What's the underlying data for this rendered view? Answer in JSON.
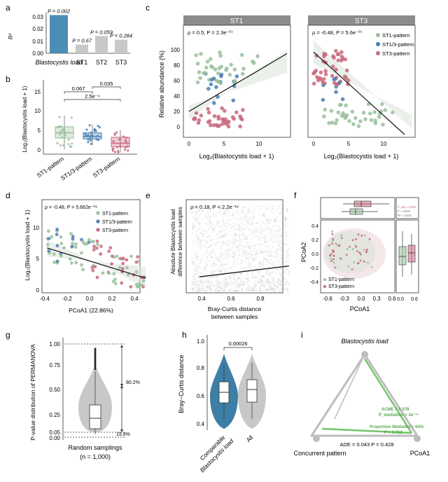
{
  "panels": {
    "a": {
      "label": "a",
      "ylabel": "R²",
      "yticks": [
        "0.00",
        "0.01",
        "0.02",
        "0.03"
      ],
      "chart_data": {
        "type": "bar",
        "categories": [
          "Blastocystis load",
          "ST1",
          "ST2",
          "ST3"
        ],
        "values": [
          0.031,
          0.007,
          0.014,
          0.011
        ],
        "bar_labels": [
          "P = 0.002",
          "P = 0.67",
          "P = 0.059",
          "P = 0.284"
        ],
        "ylim": [
          0,
          0.033
        ]
      }
    },
    "b": {
      "label": "b",
      "ylabel": "Log₂(Blastocystis load + 1)",
      "yticks": [
        "0",
        "5",
        "10",
        "15"
      ],
      "categories": [
        "ST1-pattern",
        "ST1/3-pattern",
        "ST3-pattern"
      ],
      "boxes": [
        {
          "min": 1.2,
          "q1": 4.0,
          "median": 5.3,
          "q3": 6.8,
          "max": 9.6
        },
        {
          "min": 2.3,
          "q1": 3.8,
          "median": 4.4,
          "q3": 5.3,
          "max": 7.4
        },
        {
          "min": 0.4,
          "q1": 1.8,
          "median": 2.7,
          "q3": 4.2,
          "max": 6.0
        }
      ],
      "brackets": [
        "0.067",
        "0.035",
        "2.5e⁻⁴"
      ]
    },
    "c": {
      "label": "c",
      "ylabel": "Relative abundance (%)",
      "xlabel": "Log₂(Blastocystis load + 1)",
      "yticks": [
        "0",
        "20",
        "40",
        "60",
        "80",
        "100"
      ],
      "xticks": [
        "0",
        "5",
        "10"
      ],
      "st1_title": "ST1",
      "st3_title": "ST3",
      "st1_stats": "ρ = 0.5, P = 2.3e⁻⁰⁷",
      "st3_stats": "ρ = -0.48, P = 5.6e⁻⁰⁷",
      "legend": [
        "ST1-pattern",
        "ST1/3-pattern",
        "ST3-pattern"
      ]
    },
    "d": {
      "label": "d",
      "ylabel": "Log₂(Blastocystis load + 1)",
      "xlabel": "PCoA1 (22.86%)",
      "stats": "ρ = -0.48, P = 5.662e⁻⁰⁶",
      "yticks": [
        "0",
        "5",
        "10"
      ],
      "xticks": [
        "-0.4",
        "-0.2",
        "0.0",
        "0.2",
        "0.4"
      ],
      "legend": [
        "ST1-pattern",
        "ST1/3-pattern",
        "ST3-pattern"
      ]
    },
    "e": {
      "label": "e",
      "ylabel_line1": "Absolute Blastocystis load",
      "ylabel_line2": "difference between samples",
      "xlabel_line1": "Bray-Curtis distance",
      "xlabel_line2": "between samples",
      "stats": "ρ = 0.18, P < 2.2e⁻¹⁶",
      "xticks": [
        "0.4",
        "0.6",
        "0.8"
      ]
    },
    "f": {
      "label": "f",
      "ylabel": "PCoA2",
      "xlabel": "PCoA1",
      "xticks": [
        "-0.6",
        "-0.3",
        "0.0",
        "0.3",
        "0.6"
      ],
      "yticks": [
        "-0.4",
        "-0.2",
        "0.0",
        "0.2",
        "0.4"
      ],
      "side_ticks": [
        "0.0",
        "0.6"
      ],
      "inset_stats": [
        "P_adj = 0.005",
        "F = 0.576",
        "R² = 0.010"
      ],
      "legend": [
        "ST1-pattern",
        "ST3-pattern"
      ]
    },
    "g": {
      "label": "g",
      "ylabel": "P-value distribution of PERMANOVA",
      "xlabel_line1": "Random samplings",
      "xlabel_line2": "(n = 1,000)",
      "yticks": [
        "0.00",
        "0.05",
        "0.25",
        "0.50",
        "0.75",
        "1.00"
      ],
      "pct_upper": "80.2%",
      "pct_lower": "19.8%"
    },
    "h": {
      "label": "h",
      "ylabel": "Bray−Curtis distance",
      "yticks": [
        "0.4",
        "0.6",
        "0.8",
        "1.0"
      ],
      "categories": [
        "Comparable Blastocystis load",
        "All"
      ],
      "cat1_line1": "Comparable",
      "cat1_line2": "Blastocystis load",
      "cat2": "All",
      "pvalue": "0.00026"
    },
    "i": {
      "label": "i",
      "top_node": "Blastocystis load",
      "left_node": "Concurrent  pattern",
      "right_node": "PCoA1",
      "acme": "ACME = 0.078",
      "acme_p": "P_mediation < 2e⁻¹⁶",
      "prop": "Proportion Mediated = 64%",
      "prop_p": "P = 0.012",
      "ade": "ADE = 0.043 P = 0.428"
    }
  },
  "colors": {
    "st1": "#9bbf9c",
    "st13": "#4a7fb5",
    "st3": "#c9687e",
    "bar_main": "#4a8db5",
    "bar_other": "#c8c8c8",
    "panel_head": "#8c8c8c",
    "green_arrow": "#73c46a",
    "grey_edge": "#bdbdbd"
  }
}
